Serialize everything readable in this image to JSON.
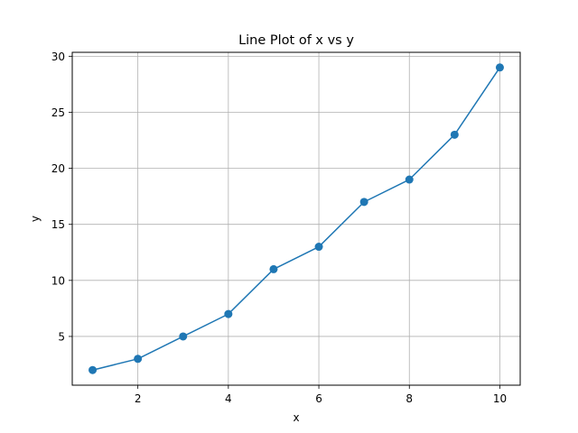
{
  "chart_data": {
    "type": "line",
    "title": "Line Plot of x vs y",
    "xlabel": "x",
    "ylabel": "y",
    "xlim": [
      0.55,
      10.45
    ],
    "ylim": [
      0.65,
      30.35
    ],
    "xticks": [
      2,
      4,
      6,
      8,
      10
    ],
    "yticks": [
      5,
      10,
      15,
      20,
      25,
      30
    ],
    "grid": true,
    "series": [
      {
        "x": [
          1,
          2,
          3,
          4,
          5,
          6,
          7,
          8,
          9,
          10
        ],
        "y": [
          2,
          3,
          5,
          7,
          11,
          13,
          17,
          19,
          23,
          29
        ],
        "color": "#1f77b4",
        "marker": "circle"
      }
    ]
  }
}
